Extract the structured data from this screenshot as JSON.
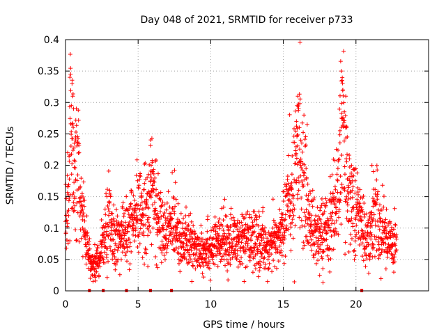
{
  "chart_data": {
    "type": "scatter",
    "title": "Day 048 of 2021, SRMTID for receiver p733",
    "xlabel": "GPS time / hours",
    "ylabel": "SRMTID / TECUs",
    "xlim": [
      0,
      25
    ],
    "ylim": [
      0,
      0.4
    ],
    "grid": true,
    "marker": "+",
    "x_ticks": [
      0,
      5,
      10,
      15,
      20
    ],
    "x_tick_labels": [
      "0",
      "5",
      "10",
      "15",
      "20"
    ],
    "y_ticks": [
      0,
      0.05,
      0.1,
      0.15,
      0.2,
      0.25,
      0.3,
      0.35,
      0.4
    ],
    "y_tick_labels": [
      "0",
      "0.05",
      "0.1",
      "0.15",
      "0.2",
      "0.25",
      "0.3",
      "0.35",
      "0.4"
    ],
    "series": [
      {
        "name": "SRMTID",
        "color": "#ff0000",
        "trend_x": [
          0,
          0.2,
          0.35,
          0.5,
          0.7,
          0.9,
          1.1,
          1.3,
          1.5,
          1.7,
          2.0,
          2.3,
          2.6,
          2.9,
          3.2,
          3.5,
          4.0,
          4.5,
          5.0,
          5.5,
          5.8,
          6.0,
          6.3,
          6.6,
          7.0,
          7.5,
          8.0,
          9.0,
          10.0,
          11.0,
          12.0,
          13.0,
          14.0,
          14.5,
          15.0,
          15.3,
          15.6,
          15.9,
          16.1,
          16.4,
          16.7,
          17.0,
          17.5,
          18.0,
          18.5,
          18.8,
          19.0,
          19.2,
          19.5,
          19.8,
          20.2,
          20.6,
          21.0,
          21.3,
          21.6,
          22.0,
          22.4,
          22.8
        ],
        "trend_y": [
          0.1,
          0.15,
          0.3,
          0.22,
          0.17,
          0.2,
          0.14,
          0.1,
          0.07,
          0.05,
          0.04,
          0.05,
          0.07,
          0.12,
          0.09,
          0.08,
          0.09,
          0.1,
          0.12,
          0.13,
          0.15,
          0.17,
          0.12,
          0.1,
          0.09,
          0.12,
          0.08,
          0.07,
          0.07,
          0.08,
          0.08,
          0.08,
          0.07,
          0.08,
          0.1,
          0.14,
          0.14,
          0.2,
          0.25,
          0.17,
          0.13,
          0.1,
          0.09,
          0.1,
          0.13,
          0.17,
          0.25,
          0.22,
          0.16,
          0.14,
          0.12,
          0.09,
          0.08,
          0.14,
          0.1,
          0.09,
          0.08,
          0.08
        ],
        "peak_points": [
          [
            0.3,
            0.34
          ],
          [
            0.35,
            0.345
          ],
          [
            0.45,
            0.33
          ],
          [
            0.5,
            0.31
          ],
          [
            0.4,
            0.295
          ],
          [
            0.55,
            0.29
          ],
          [
            0.45,
            0.265
          ],
          [
            0.7,
            0.245
          ],
          [
            0.6,
            0.235
          ],
          [
            0.15,
            0.22
          ],
          [
            5.9,
            0.2
          ],
          [
            6.0,
            0.19
          ],
          [
            5.85,
            0.175
          ],
          [
            16.0,
            0.31
          ],
          [
            15.95,
            0.295
          ],
          [
            16.05,
            0.29
          ],
          [
            15.9,
            0.27
          ],
          [
            16.1,
            0.26
          ],
          [
            16.2,
            0.24
          ],
          [
            19.0,
            0.35
          ],
          [
            19.05,
            0.335
          ],
          [
            19.1,
            0.32
          ],
          [
            19.3,
            0.31
          ],
          [
            19.2,
            0.285
          ],
          [
            19.0,
            0.275
          ],
          [
            19.3,
            0.26
          ],
          [
            18.9,
            0.255
          ],
          [
            19.4,
            0.245
          ],
          [
            21.1,
            0.2
          ],
          [
            21.2,
            0.19
          ],
          [
            16.6,
            0.18
          ],
          [
            15.5,
            0.165
          ]
        ],
        "low_points": [
          [
            1.7,
            0.02
          ],
          [
            2.1,
            0.03
          ],
          [
            2.3,
            0.025
          ],
          [
            8.7,
            0.015
          ],
          [
            12.3,
            0.015
          ],
          [
            9.5,
            0.022
          ],
          [
            17.5,
            0.025
          ],
          [
            18.2,
            0.03
          ]
        ]
      }
    ],
    "gap_markers_x": [
      1.65,
      2.6,
      4.2,
      5.85,
      7.3,
      20.4
    ]
  }
}
